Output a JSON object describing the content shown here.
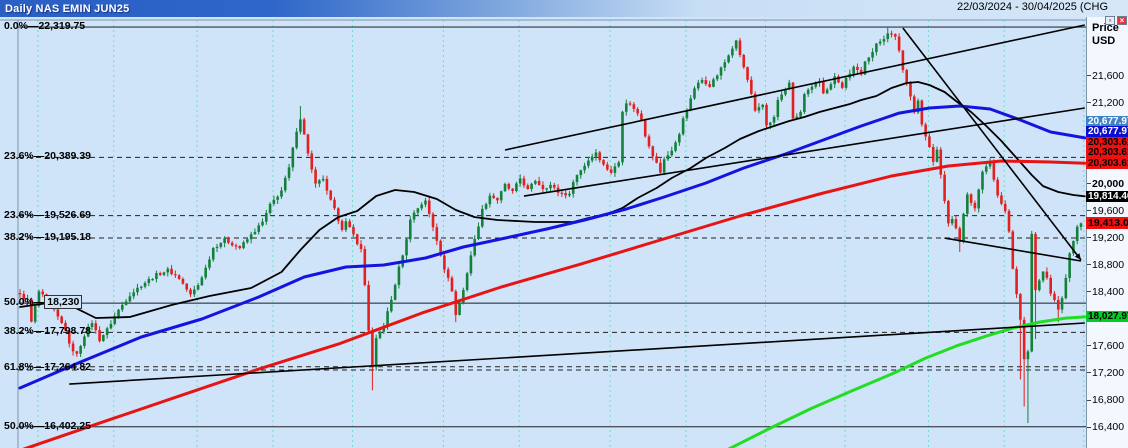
{
  "title_bar": {
    "title": "Daily NAS EMIN JUN25",
    "date_range": "22/03/2024 - 30/04/2025 (CHG"
  },
  "window_buttons": {
    "restore": "▫",
    "close": "×"
  },
  "price_axis": {
    "title_line1": "Price",
    "title_line2": "USD",
    "ticks": [
      21600,
      21200,
      20000,
      19600,
      19200,
      18800,
      18400,
      17600,
      17200,
      16800,
      16400
    ],
    "bold_ticks": [
      20000
    ],
    "top_price": 22424,
    "bottom_price": 16086
  },
  "fib_levels": [
    {
      "pct": "0.0%",
      "label": "22,319.75",
      "price": 22319.75,
      "style": "solid"
    },
    {
      "pct": "23.6%",
      "label": "20,389.39",
      "price": 20389.39,
      "style": "dashed"
    },
    {
      "pct": "23.6%",
      "label": "19,526.69",
      "price": 19526.69,
      "style": "dashed"
    },
    {
      "pct": "38.2%",
      "label": "19,195.18",
      "price": 19195.18,
      "style": "dashed"
    },
    {
      "pct": "50.0%",
      "label": "18,230",
      "price": 18230.0,
      "style": "solid",
      "boxed": true
    },
    {
      "pct": "38.2%",
      "label": "17,798.78",
      "price": 17798.78,
      "style": "dashed"
    },
    {
      "pct": "61.8%",
      "label": "17,264.82",
      "price": 17264.82,
      "style": "double-dashed"
    },
    {
      "pct": "50.0%",
      "label": "16,402.25",
      "price": 16402.25,
      "style": "solid"
    }
  ],
  "price_badges": {
    "stack_anchor_price": 20303.61,
    "items": [
      {
        "label": "20,677.97",
        "price": 20677.97,
        "bg": "#3e83c8",
        "fg": "#ffffff",
        "slot": 4
      },
      {
        "label": "20,677.97",
        "price": 20677.97,
        "bg": "#0d0dd0",
        "fg": "#ffffff",
        "slot": 3
      },
      {
        "label": "20,303.61",
        "price": 20303.61,
        "bg": "#ee1111",
        "fg": "#000000",
        "slot": 2
      },
      {
        "label": "20,303.61",
        "price": 20303.61,
        "bg": "#ee1111",
        "fg": "#000000",
        "slot": 1
      },
      {
        "label": "20,303.61",
        "price": 20303.61,
        "bg": "#ee1111",
        "fg": "#000000",
        "slot": 0
      },
      {
        "label": "19,814.40",
        "price": 19814.4,
        "bg": "#000000",
        "fg": "#ffffff"
      },
      {
        "label": "19,413.00",
        "price": 19413.0,
        "bg": "#f01010",
        "fg": "#000000",
        "big": true
      },
      {
        "label": "18,027.97",
        "price": 18027.97,
        "bg": "#00ce22",
        "fg": "#000000"
      }
    ]
  },
  "chart_data": {
    "type": "candlestick",
    "instrument": "NAS EMIN JUN25",
    "period": "Daily",
    "date_start": "22/03/2024",
    "date_end": "30/04/2025",
    "last_price": 19413.0,
    "days": 281,
    "price_range": [
      16086,
      22424
    ],
    "colors": {
      "up": "#13813a",
      "down": "#e32020",
      "ma_fast": "#000000",
      "ma_mid": "#1414e0",
      "ma_slow": "#e81414",
      "ma_long": "#22dd22",
      "grid": "#49e0b5",
      "background": "#cfe4f9"
    },
    "month_gridline_days": [
      5,
      25,
      47,
      67,
      88,
      112,
      132,
      156,
      176,
      197,
      218,
      240,
      260,
      281
    ],
    "close_path": [
      [
        0,
        18350
      ],
      [
        2,
        18280
      ],
      [
        3,
        17950
      ],
      [
        5,
        18400
      ],
      [
        8,
        18210
      ],
      [
        10,
        18020
      ],
      [
        12,
        17840
      ],
      [
        13,
        17610
      ],
      [
        15,
        17465
      ],
      [
        17,
        17760
      ],
      [
        19,
        17950
      ],
      [
        21,
        17690
      ],
      [
        23,
        17840
      ],
      [
        26,
        18130
      ],
      [
        29,
        18355
      ],
      [
        32,
        18500
      ],
      [
        36,
        18650
      ],
      [
        39,
        18720
      ],
      [
        42,
        18600
      ],
      [
        45,
        18350
      ],
      [
        47,
        18500
      ],
      [
        49,
        18750
      ],
      [
        51,
        19050
      ],
      [
        54,
        19170
      ],
      [
        58,
        19050
      ],
      [
        61,
        19240
      ],
      [
        64,
        19430
      ],
      [
        66,
        19680
      ],
      [
        69,
        19900
      ],
      [
        71,
        20230
      ],
      [
        73,
        20795
      ],
      [
        74,
        20970
      ],
      [
        75,
        20720
      ],
      [
        77,
        20200
      ],
      [
        78,
        19980
      ],
      [
        80,
        20080
      ],
      [
        81,
        19875
      ],
      [
        83,
        19610
      ],
      [
        85,
        19340
      ],
      [
        86,
        19430
      ],
      [
        88,
        19240
      ],
      [
        90,
        19020
      ],
      [
        91,
        18500
      ],
      [
        92,
        17835
      ],
      [
        93,
        17270
      ],
      [
        94,
        17690
      ],
      [
        96,
        17910
      ],
      [
        98,
        18280
      ],
      [
        100,
        18750
      ],
      [
        102,
        19165
      ],
      [
        103,
        19490
      ],
      [
        105,
        19640
      ],
      [
        107,
        19760
      ],
      [
        108,
        19540
      ],
      [
        110,
        19165
      ],
      [
        112,
        18750
      ],
      [
        114,
        18425
      ],
      [
        115,
        18055
      ],
      [
        117,
        18425
      ],
      [
        119,
        18945
      ],
      [
        121,
        19390
      ],
      [
        122,
        19610
      ],
      [
        124,
        19830
      ],
      [
        126,
        19760
      ],
      [
        128,
        19980
      ],
      [
        130,
        19875
      ],
      [
        132,
        20080
      ],
      [
        134,
        19905
      ],
      [
        136,
        20050
      ],
      [
        138,
        19935
      ],
      [
        140,
        19980
      ],
      [
        142,
        19875
      ],
      [
        145,
        19830
      ],
      [
        146,
        20050
      ],
      [
        148,
        20200
      ],
      [
        150,
        20350
      ],
      [
        152,
        20470
      ],
      [
        154,
        20275
      ],
      [
        156,
        20170
      ],
      [
        158,
        20320
      ],
      [
        159,
        21090
      ],
      [
        160,
        21210
      ],
      [
        162,
        21120
      ],
      [
        164,
        20945
      ],
      [
        165,
        20720
      ],
      [
        167,
        20425
      ],
      [
        169,
        20170
      ],
      [
        170,
        20350
      ],
      [
        172,
        20500
      ],
      [
        174,
        20720
      ],
      [
        175,
        20975
      ],
      [
        177,
        21240
      ],
      [
        178,
        21420
      ],
      [
        180,
        21535
      ],
      [
        182,
        21460
      ],
      [
        184,
        21610
      ],
      [
        186,
        21800
      ],
      [
        188,
        22010
      ],
      [
        189,
        22100
      ],
      [
        190,
        21905
      ],
      [
        192,
        21535
      ],
      [
        193,
        21315
      ],
      [
        194,
        21060
      ],
      [
        196,
        21165
      ],
      [
        197,
        20870
      ],
      [
        199,
        20975
      ],
      [
        200,
        21240
      ],
      [
        202,
        21390
      ],
      [
        203,
        21510
      ],
      [
        204,
        20945
      ],
      [
        206,
        21060
      ],
      [
        207,
        21315
      ],
      [
        209,
        21420
      ],
      [
        211,
        21535
      ],
      [
        212,
        21360
      ],
      [
        214,
        21460
      ],
      [
        215,
        21610
      ],
      [
        217,
        21420
      ],
      [
        218,
        21565
      ],
      [
        220,
        21715
      ],
      [
        222,
        21610
      ],
      [
        223,
        21830
      ],
      [
        225,
        21950
      ],
      [
        226,
        22055
      ],
      [
        228,
        22160
      ],
      [
        229,
        22245
      ],
      [
        231,
        22160
      ],
      [
        232,
        21980
      ],
      [
        233,
        21685
      ],
      [
        235,
        21315
      ],
      [
        236,
        21060
      ],
      [
        237,
        21240
      ],
      [
        238,
        20870
      ],
      [
        240,
        20530
      ],
      [
        241,
        20320
      ],
      [
        242,
        20500
      ],
      [
        244,
        19760
      ],
      [
        245,
        19390
      ],
      [
        246,
        19490
      ],
      [
        248,
        19160
      ],
      [
        249,
        19535
      ],
      [
        250,
        19830
      ],
      [
        252,
        19610
      ],
      [
        253,
        19935
      ],
      [
        254,
        20200
      ],
      [
        256,
        20320
      ],
      [
        257,
        20080
      ],
      [
        258,
        19830
      ],
      [
        260,
        19610
      ],
      [
        261,
        19310
      ],
      [
        262,
        18750
      ],
      [
        264,
        17980
      ],
      [
        265,
        17390
      ],
      [
        266,
        17510
      ],
      [
        267,
        19280
      ],
      [
        268,
        18425
      ],
      [
        270,
        18690
      ],
      [
        271,
        18600
      ],
      [
        272,
        18350
      ],
      [
        274,
        18160
      ],
      [
        275,
        18280
      ],
      [
        276,
        18600
      ],
      [
        277,
        18945
      ],
      [
        278,
        19160
      ],
      [
        279,
        19340
      ],
      [
        280,
        19413
      ]
    ],
    "wick_overrides": [
      {
        "day": 93,
        "low": 16940
      },
      {
        "day": 74,
        "high": 21150
      },
      {
        "day": 115,
        "low": 17950
      },
      {
        "day": 189,
        "high": 22130
      },
      {
        "day": 229,
        "high": 22319
      },
      {
        "day": 248,
        "low": 18990
      },
      {
        "day": 264,
        "low": 17100
      },
      {
        "day": 265,
        "low": 16700
      },
      {
        "day": 266,
        "low": 16455
      },
      {
        "day": 268,
        "low": 17700
      },
      {
        "day": 274,
        "low": 17950
      }
    ],
    "moving_averages": [
      {
        "name": "ma-black",
        "color": "#000000",
        "width": 1.8,
        "points": [
          [
            0,
            18174
          ],
          [
            11,
            18262
          ],
          [
            20,
            18011
          ],
          [
            29,
            18026
          ],
          [
            40,
            18203
          ],
          [
            50,
            18337
          ],
          [
            61,
            18455
          ],
          [
            69,
            18692
          ],
          [
            74,
            19018
          ],
          [
            79,
            19314
          ],
          [
            84,
            19506
          ],
          [
            89,
            19595
          ],
          [
            94,
            19817
          ],
          [
            99,
            19906
          ],
          [
            104,
            19877
          ],
          [
            110,
            19773
          ],
          [
            115,
            19610
          ],
          [
            120,
            19506
          ],
          [
            126,
            19462
          ],
          [
            136,
            19432
          ],
          [
            146,
            19432
          ],
          [
            150,
            19492
          ],
          [
            155,
            19551
          ],
          [
            159,
            19640
          ],
          [
            163,
            19788
          ],
          [
            168,
            19936
          ],
          [
            172,
            20084
          ],
          [
            177,
            20232
          ],
          [
            181,
            20380
          ],
          [
            186,
            20528
          ],
          [
            190,
            20662
          ],
          [
            195,
            20780
          ],
          [
            199,
            20854
          ],
          [
            203,
            20928
          ],
          [
            207,
            20987
          ],
          [
            211,
            21061
          ],
          [
            215,
            21121
          ],
          [
            219,
            21180
          ],
          [
            222,
            21239
          ],
          [
            226,
            21298
          ],
          [
            230,
            21417
          ],
          [
            234,
            21491
          ],
          [
            237,
            21506
          ],
          [
            240,
            21461
          ],
          [
            244,
            21358
          ],
          [
            247,
            21224
          ],
          [
            251,
            21061
          ],
          [
            255,
            20854
          ],
          [
            259,
            20632
          ],
          [
            263,
            20380
          ],
          [
            267,
            20128
          ],
          [
            270,
            19965
          ],
          [
            274,
            19877
          ],
          [
            278,
            19832
          ],
          [
            281,
            19814
          ]
        ]
      },
      {
        "name": "ma-blue",
        "color": "#1414e0",
        "width": 3,
        "points": [
          [
            0,
            16974
          ],
          [
            16,
            17359
          ],
          [
            32,
            17729
          ],
          [
            48,
            17996
          ],
          [
            63,
            18322
          ],
          [
            75,
            18618
          ],
          [
            86,
            18766
          ],
          [
            96,
            18796
          ],
          [
            107,
            18899
          ],
          [
            117,
            19062
          ],
          [
            128,
            19195
          ],
          [
            139,
            19329
          ],
          [
            149,
            19462
          ],
          [
            160,
            19625
          ],
          [
            170,
            19803
          ],
          [
            181,
            20010
          ],
          [
            191,
            20232
          ],
          [
            202,
            20440
          ],
          [
            212,
            20647
          ],
          [
            222,
            20854
          ],
          [
            232,
            21046
          ],
          [
            240,
            21121
          ],
          [
            248,
            21150
          ],
          [
            256,
            21106
          ],
          [
            264,
            20943
          ],
          [
            272,
            20765
          ],
          [
            281,
            20678
          ]
        ]
      },
      {
        "name": "ma-red",
        "color": "#e81414",
        "width": 3,
        "points": [
          [
            1,
            16070
          ],
          [
            21,
            16455
          ],
          [
            42,
            16855
          ],
          [
            63,
            17255
          ],
          [
            84,
            17625
          ],
          [
            106,
            18084
          ],
          [
            127,
            18470
          ],
          [
            148,
            18810
          ],
          [
            169,
            19166
          ],
          [
            190,
            19521
          ],
          [
            211,
            19847
          ],
          [
            230,
            20114
          ],
          [
            245,
            20262
          ],
          [
            259,
            20336
          ],
          [
            272,
            20321
          ],
          [
            281,
            20304
          ]
        ]
      },
      {
        "name": "ma-green",
        "color": "#22dd22",
        "width": 3,
        "points": [
          [
            187,
            16070
          ],
          [
            198,
            16381
          ],
          [
            209,
            16677
          ],
          [
            220,
            16944
          ],
          [
            230,
            17181
          ],
          [
            239,
            17418
          ],
          [
            247,
            17595
          ],
          [
            255,
            17743
          ],
          [
            262,
            17862
          ],
          [
            269,
            17951
          ],
          [
            276,
            18010
          ],
          [
            281,
            18028
          ]
        ]
      }
    ],
    "trend_lines": [
      {
        "name": "channel-upper",
        "points": [
          [
            128,
            20499
          ],
          [
            281,
            22350
          ]
        ]
      },
      {
        "name": "channel-lower",
        "points": [
          [
            133,
            19817
          ],
          [
            281,
            21121
          ]
        ]
      },
      {
        "name": "long-support",
        "points": [
          [
            13,
            17033
          ],
          [
            281,
            17937
          ]
        ]
      },
      {
        "name": "wedge-upper",
        "points": [
          [
            233,
            22305
          ],
          [
            280,
            18870
          ]
        ],
        "arrow": true
      },
      {
        "name": "wedge-lower",
        "points": [
          [
            244,
            19195
          ],
          [
            280,
            18855
          ]
        ]
      }
    ]
  }
}
